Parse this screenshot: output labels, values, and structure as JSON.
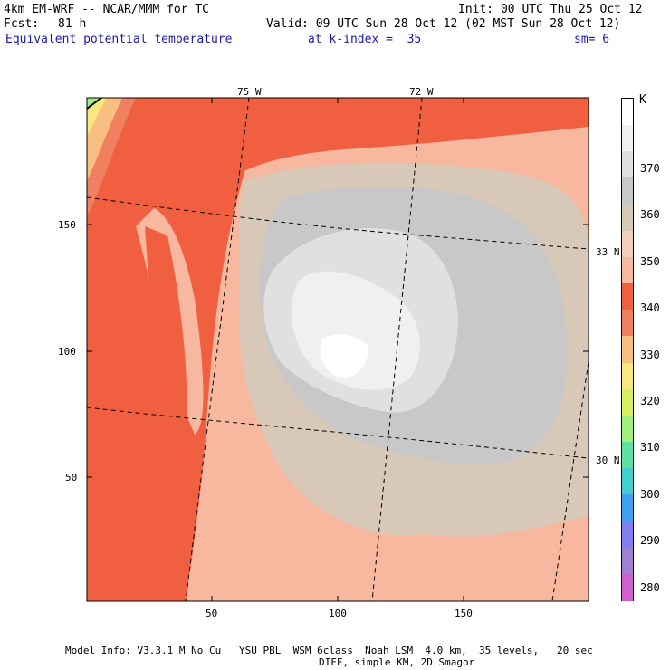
{
  "header": {
    "model": "4km EM-WRF -- NCAR/MMM for TC",
    "init": "Init: 00 UTC Thu 25 Oct 12",
    "fcst_label": "Fcst:",
    "fcst_value": "81 h",
    "valid": "Valid: 09 UTC Sun 28 Oct 12 (02 MST Sun 28 Oct 12)",
    "field": "Equivalent potential temperature",
    "k_index": "at k-index =  35",
    "sm": "sm= 6"
  },
  "map": {
    "lon_labels": [
      "75 W",
      "72 W"
    ],
    "lat_labels": [
      "33 N",
      "30 N"
    ],
    "x_ticks": [
      "50",
      "100",
      "150"
    ],
    "y_ticks": [
      "150",
      "100",
      "50"
    ]
  },
  "colorbar": {
    "unit": "K",
    "levels": [
      "370",
      "360",
      "350",
      "340",
      "330",
      "320",
      "310",
      "300",
      "290",
      "280"
    ],
    "colors": [
      "#ffffff",
      "#f0f0f0",
      "#e0e0e0",
      "#c8c8c8",
      "#d8c8b8",
      "#f0d0b8",
      "#f8b8a0",
      "#f06040",
      "#f08060",
      "#f8c080",
      "#f8e880",
      "#d8f060",
      "#a0f080",
      "#60e0a0",
      "#40d0d0",
      "#40a0f0",
      "#8080f0",
      "#a080d0",
      "#d060d0"
    ]
  },
  "footer": {
    "line1": "Model Info: V3.3.1 M No Cu   YSU PBL  WSM 6class  Noah LSM  4.0 km,  35 levels,   20 sec",
    "line2": "DIFF, simple KM, 2D Smagor"
  }
}
